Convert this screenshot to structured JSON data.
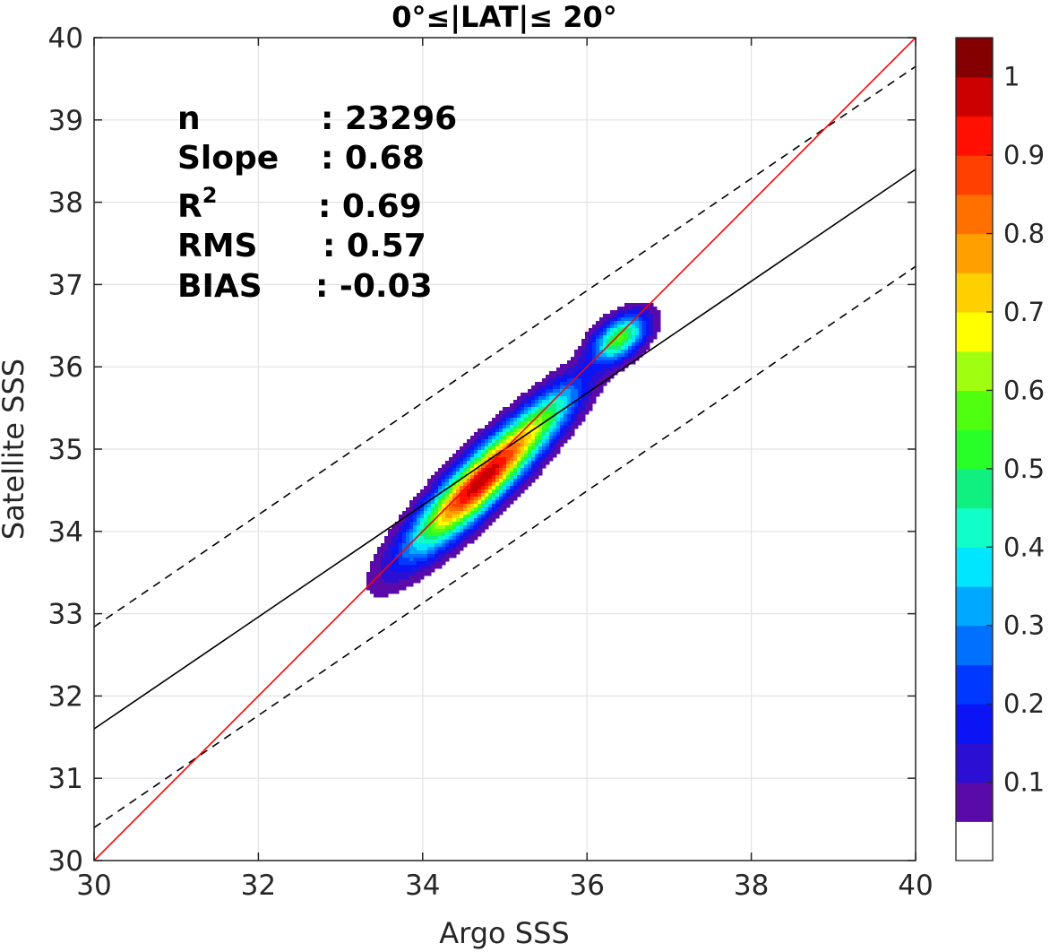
{
  "chart_data": {
    "type": "contour",
    "title": "0°≤|LAT|≤ 20°",
    "xlabel": "Argo SSS",
    "ylabel": "Satellite SSS",
    "xlim": [
      30,
      40
    ],
    "ylim": [
      30,
      40
    ],
    "xticks": [
      "30",
      "32",
      "34",
      "36",
      "38",
      "40"
    ],
    "yticks": [
      "30",
      "31",
      "32",
      "33",
      "34",
      "35",
      "36",
      "37",
      "38",
      "39",
      "40"
    ],
    "grid": true,
    "stats": [
      {
        "label": "n",
        "value": ": 23296"
      },
      {
        "label": "Slope",
        "value": ": 0.68"
      },
      {
        "label": "R",
        "sup": "2",
        "value": ": 0.69"
      },
      {
        "label": "RMS",
        "value": ": 0.57"
      },
      {
        "label": "BIAS",
        "value": ": -0.03"
      }
    ],
    "lines": {
      "identity": {
        "x": [
          30,
          40
        ],
        "y": [
          30,
          40
        ],
        "color": "#ff0000"
      },
      "regression": {
        "x": [
          30,
          40
        ],
        "y": [
          31.6,
          38.4
        ],
        "color": "#000000"
      },
      "upper_bound": {
        "x": [
          30,
          40
        ],
        "y": [
          32.84,
          39.65
        ],
        "color": "#000000",
        "dash": true
      },
      "lower_bound": {
        "x": [
          30,
          40
        ],
        "y": [
          30.4,
          37.22
        ],
        "color": "#000000",
        "dash": true
      }
    },
    "density": {
      "components": [
        {
          "cx": 34.7,
          "cy": 34.6,
          "sa": 0.78,
          "sb": 0.19,
          "angle_deg": 45,
          "w": 1.0
        },
        {
          "cx": 36.4,
          "cy": 36.35,
          "sa": 0.26,
          "sb": 0.15,
          "angle_deg": 38,
          "w": 0.55
        },
        {
          "cx": 35.55,
          "cy": 35.45,
          "sa": 0.45,
          "sb": 0.16,
          "angle_deg": 45,
          "w": 0.22
        }
      ],
      "min_level": 0.05
    },
    "colorbar": {
      "ticks": [
        "0.1",
        "0.2",
        "0.3",
        "0.4",
        "0.5",
        "0.6",
        "0.7",
        "0.8",
        "0.9",
        "1"
      ],
      "levels": [
        0,
        0.05,
        0.1,
        0.15,
        0.2,
        0.25,
        0.3,
        0.35,
        0.4,
        0.45,
        0.5,
        0.55,
        0.6,
        0.65,
        0.7,
        0.75,
        0.8,
        0.85,
        0.9,
        0.95,
        1.0
      ],
      "colors": [
        "#ffffff",
        "#5a0aa8",
        "#2b10d4",
        "#0a14f5",
        "#0038ff",
        "#0070ff",
        "#00a8ff",
        "#00e6ff",
        "#10ffc8",
        "#10f080",
        "#28ff28",
        "#50ff10",
        "#a0ff10",
        "#ffff00",
        "#ffd000",
        "#ffa000",
        "#ff7000",
        "#ff4000",
        "#ff1000",
        "#cc0000",
        "#840000"
      ]
    }
  }
}
